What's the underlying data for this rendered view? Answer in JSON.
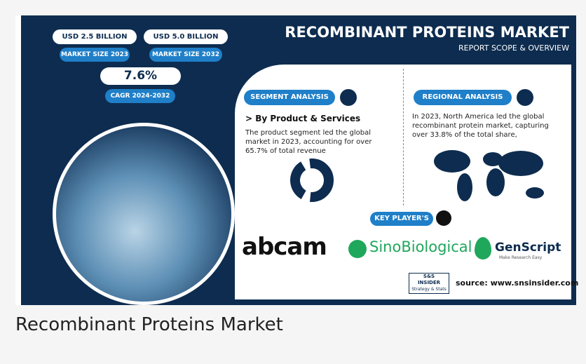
{
  "header": {
    "title": "RECOMBINANT PROTEINS MARKET",
    "subtitle": "REPORT SCOPE & OVERVIEW"
  },
  "stats": [
    {
      "value": "USD 2.5 BILLION",
      "label": "MARKET SIZE 2023"
    },
    {
      "value": "USD 5.0 BILLION",
      "label": "MARKET SIZE 2032"
    },
    {
      "value": "7.6%",
      "label": "CAGR 2024-2032"
    }
  ],
  "segment": {
    "heading": "SEGMENT ANALYSIS",
    "subheading": "> By Product & Services",
    "text": "The product segment led the global market in 2023, accounting for over 65.7% of total revenue"
  },
  "regional": {
    "heading": "REGIONAL ANALYSIS",
    "text": "In 2023, North America led the global recombinant protein market, capturing over 33.8% of the total share,"
  },
  "key_players": {
    "heading": "KEY PLAYER'S",
    "players": [
      "abcam",
      "SinoBiological",
      "GenScript"
    ],
    "tagline": "Make Research Easy"
  },
  "logo": {
    "lines": [
      "S&S",
      "INSIDER",
      "Strategy & Stats"
    ]
  },
  "source": "source: www.snsinsider.com",
  "caption": "Recombinant Proteins Market"
}
